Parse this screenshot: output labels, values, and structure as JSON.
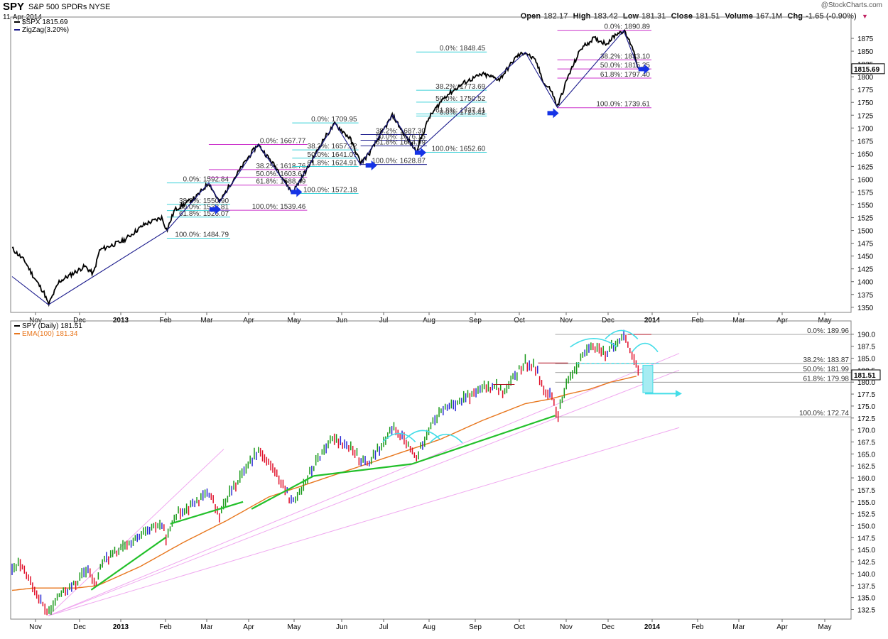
{
  "header": {
    "symbol": "SPY",
    "name": "S&P 500 SPDRs",
    "exchange": "NYSE",
    "date": "11-Apr-2014",
    "logo": "@StockCharts.com",
    "open_label": "Open",
    "open": "182.17",
    "high_label": "High",
    "high": "183.42",
    "low_label": "Low",
    "low": "181.31",
    "close_label": "Close",
    "close": "181.51",
    "volume_label": "Volume",
    "volume": "167.1M",
    "chg_label": "Chg",
    "chg": "-1.65 (-0.90%)"
  },
  "colors": {
    "price": "#000000",
    "zigzag": "#1a1a8c",
    "fib_cyan": "#3cd1d8",
    "fib_magenta": "#cc33cc",
    "arrow": "#1533e6",
    "up_bar": "#1a9a1a",
    "down_bar": "#e0102a",
    "flat_bar": "#2a2ad4",
    "ema": "#e8771e",
    "trend_green": "#22c02a",
    "fan_pink": "#f0a8f0",
    "cyan_marks": "#44dde8"
  },
  "chart_data": [
    {
      "type": "line",
      "panel": "top",
      "legend": [
        {
          "label": "$SPX 1815.69",
          "color": "#000000"
        },
        {
          "label": "ZigZag(3.20%)",
          "color": "#1a1a8c"
        }
      ],
      "last_value_label": "1815.69",
      "ylim": [
        1340,
        1900
      ],
      "yticks": [
        1350,
        1375,
        1400,
        1425,
        1450,
        1475,
        1500,
        1525,
        1550,
        1575,
        1600,
        1625,
        1650,
        1675,
        1700,
        1725,
        1750,
        1775,
        1800,
        1825,
        1850,
        1875
      ],
      "xticks": [
        "Nov",
        "Dec",
        "2013",
        "Feb",
        "Mar",
        "Apr",
        "May",
        "Jun",
        "Jul",
        "Aug",
        "Sep",
        "Oct",
        "Nov",
        "Dec",
        "2014",
        "Feb",
        "Mar",
        "Apr",
        "May"
      ],
      "series_anchors": [
        {
          "m": 0.0,
          "v": 1465
        },
        {
          "m": 0.3,
          "v": 1440
        },
        {
          "m": 0.5,
          "v": 1410
        },
        {
          "m": 0.75,
          "v": 1378
        },
        {
          "m": 0.85,
          "v": 1355
        },
        {
          "m": 1.1,
          "v": 1400
        },
        {
          "m": 1.5,
          "v": 1420
        },
        {
          "m": 1.7,
          "v": 1430
        },
        {
          "m": 1.9,
          "v": 1415
        },
        {
          "m": 2.05,
          "v": 1462
        },
        {
          "m": 2.6,
          "v": 1480
        },
        {
          "m": 3.1,
          "v": 1512
        },
        {
          "m": 3.5,
          "v": 1525
        },
        {
          "m": 3.62,
          "v": 1500
        },
        {
          "m": 3.8,
          "v": 1540
        },
        {
          "m": 4.3,
          "v": 1565
        },
        {
          "m": 4.6,
          "v": 1593
        },
        {
          "m": 4.85,
          "v": 1555
        },
        {
          "m": 5.1,
          "v": 1590
        },
        {
          "m": 5.5,
          "v": 1640
        },
        {
          "m": 5.75,
          "v": 1668
        },
        {
          "m": 6.2,
          "v": 1620
        },
        {
          "m": 6.55,
          "v": 1573
        },
        {
          "m": 6.9,
          "v": 1620
        },
        {
          "m": 7.3,
          "v": 1680
        },
        {
          "m": 7.55,
          "v": 1708
        },
        {
          "m": 7.9,
          "v": 1680
        },
        {
          "m": 8.15,
          "v": 1632
        },
        {
          "m": 8.35,
          "v": 1650
        },
        {
          "m": 8.75,
          "v": 1705
        },
        {
          "m": 8.9,
          "v": 1725
        },
        {
          "m": 9.15,
          "v": 1690
        },
        {
          "m": 9.45,
          "v": 1655
        },
        {
          "m": 9.75,
          "v": 1720
        },
        {
          "m": 10.1,
          "v": 1760
        },
        {
          "m": 10.6,
          "v": 1790
        },
        {
          "m": 11.0,
          "v": 1805
        },
        {
          "m": 11.4,
          "v": 1795
        },
        {
          "m": 11.8,
          "v": 1840
        },
        {
          "m": 12.0,
          "v": 1848
        },
        {
          "m": 12.25,
          "v": 1830
        },
        {
          "m": 12.45,
          "v": 1785
        },
        {
          "m": 12.6,
          "v": 1775
        },
        {
          "m": 12.75,
          "v": 1741
        },
        {
          "m": 13.0,
          "v": 1800
        },
        {
          "m": 13.3,
          "v": 1855
        },
        {
          "m": 13.6,
          "v": 1875
        },
        {
          "m": 13.9,
          "v": 1865
        },
        {
          "m": 14.15,
          "v": 1885
        },
        {
          "m": 14.3,
          "v": 1890
        },
        {
          "m": 14.5,
          "v": 1860
        },
        {
          "m": 14.65,
          "v": 1815
        }
      ],
      "zigzag": [
        {
          "m": 0.0,
          "v": 1410
        },
        {
          "m": 0.85,
          "v": 1355
        },
        {
          "m": 3.62,
          "v": 1500
        },
        {
          "m": 4.6,
          "v": 1593
        },
        {
          "m": 4.85,
          "v": 1555
        },
        {
          "m": 5.75,
          "v": 1668
        },
        {
          "m": 6.55,
          "v": 1573
        },
        {
          "m": 7.55,
          "v": 1710
        },
        {
          "m": 8.15,
          "v": 1628
        },
        {
          "m": 8.9,
          "v": 1725
        },
        {
          "m": 9.45,
          "v": 1653
        },
        {
          "m": 12.0,
          "v": 1848
        },
        {
          "m": 12.75,
          "v": 1740
        },
        {
          "m": 14.3,
          "v": 1890
        },
        {
          "m": 14.65,
          "v": 1815
        }
      ],
      "fib_sets": [
        {
          "color": "cyan",
          "x1": 3.62,
          "x2": 5.1,
          "labels": [
            {
              "text": "0.0%: 1592.84",
              "v": 1592.84
            },
            {
              "text": "38.2%: 1550.90",
              "v": 1550.9
            },
            {
              "text": "50.0%: 1538.81",
              "v": 1538.81
            },
            {
              "text": "61.8%: 1526.07",
              "v": 1526.07
            },
            {
              "text": "100.0%: 1484.79",
              "v": 1484.79
            }
          ]
        },
        {
          "color": "magenta",
          "x1": 4.6,
          "x2": 6.9,
          "labels": [
            {
              "text": "0.0%: 1667.77",
              "v": 1667.77
            },
            {
              "text": "38.2%: 1618.76",
              "v": 1618.76
            },
            {
              "text": "50.0%: 1603.61",
              "v": 1603.61
            },
            {
              "text": "61.8%: 1588.49",
              "v": 1588.49
            },
            {
              "text": "100.0%: 1539.46",
              "v": 1539.46
            }
          ]
        },
        {
          "color": "cyan",
          "x1": 6.55,
          "x2": 8.1,
          "labels": [
            {
              "text": "0.0%: 1709.95",
              "v": 1709.95
            },
            {
              "text": "38.2%: 1657.22",
              "v": 1657.22
            },
            {
              "text": "50.0%: 1641.07",
              "v": 1641.07
            },
            {
              "text": "61.8%: 1624.91",
              "v": 1624.91
            },
            {
              "text": "100.0%: 1572.18",
              "v": 1572.18
            }
          ]
        },
        {
          "color": "blue",
          "x1": 8.15,
          "x2": 9.7,
          "labels": [
            {
              "text": "38.2%: 1687.30",
              "v": 1687.3
            },
            {
              "text": "50.0%: 1676.15",
              "v": 1676.15
            },
            {
              "text": "61.8%: 1664.99",
              "v": 1664.99
            },
            {
              "text": "100.0%: 1628.87",
              "v": 1628.87
            }
          ]
        },
        {
          "color": "cyan",
          "x1": 9.45,
          "x2": 11.1,
          "labels": [
            {
              "text": "0.0%: 1848.45",
              "v": 1848.45
            },
            {
              "text": "38.2%: 1773.69",
              "v": 1773.69
            },
            {
              "text": "50.0%: 1750.52",
              "v": 1750.52
            },
            {
              "text": "61.8%: 1727.41",
              "v": 1727.41
            },
            {
              "text": "0.0%: 1723.42",
              "v": 1723.42
            },
            {
              "text": "100.0%: 1652.60",
              "v": 1652.6
            }
          ]
        },
        {
          "color": "magenta",
          "x1": 12.75,
          "x2": 14.95,
          "labels": [
            {
              "text": "0.0%: 1890.89",
              "v": 1890.89
            },
            {
              "text": "38.2%: 1833.10",
              "v": 1833.1
            },
            {
              "text": "50.0%: 1815.25",
              "v": 1815.25
            },
            {
              "text": "61.8%: 1797.40",
              "v": 1797.4
            },
            {
              "text": "100.0%: 1739.61",
              "v": 1739.61
            }
          ]
        }
      ],
      "arrows": [
        {
          "m": 4.75,
          "v": 1541
        },
        {
          "m": 6.65,
          "v": 1575
        },
        {
          "m": 8.4,
          "v": 1627
        },
        {
          "m": 9.55,
          "v": 1652
        },
        {
          "m": 12.65,
          "v": 1729
        },
        {
          "m": 14.78,
          "v": 1815
        }
      ]
    },
    {
      "type": "bar",
      "panel": "bottom",
      "legend": [
        {
          "label": "SPY (Daily) 181.51",
          "color": "#000000"
        },
        {
          "label": "EMA(100) 181.34",
          "color": "#e8771e"
        }
      ],
      "last_value_label": "181.51",
      "ylim": [
        130.5,
        191
      ],
      "yticks": [
        132.5,
        135.0,
        137.5,
        140.0,
        142.5,
        145.0,
        147.5,
        150.0,
        152.5,
        155.0,
        157.5,
        160.0,
        162.5,
        165.0,
        167.5,
        170.0,
        172.5,
        175.0,
        177.5,
        180.0,
        182.5,
        185.0,
        187.5,
        190.0
      ],
      "xticks": [
        "Nov",
        "Dec",
        "2013",
        "Feb",
        "Mar",
        "Apr",
        "May",
        "Jun",
        "Jul",
        "Aug",
        "Sep",
        "Oct",
        "Nov",
        "Dec",
        "2014",
        "Feb",
        "Mar",
        "Apr",
        "May"
      ],
      "fib_labels": [
        {
          "text": "0.0%: 189.96",
          "v": 189.96
        },
        {
          "text": "38.2%: 183.87",
          "v": 183.87
        },
        {
          "text": "50.0%: 181.99",
          "v": 181.99
        },
        {
          "text": "61.8%: 179.98",
          "v": 179.98
        },
        {
          "text": "100.0%: 172.74",
          "v": 172.74
        }
      ],
      "series_anchors": [
        {
          "m": 0.0,
          "v": 140.5
        },
        {
          "m": 0.15,
          "v": 142
        },
        {
          "m": 0.4,
          "v": 139
        },
        {
          "m": 0.55,
          "v": 136
        },
        {
          "m": 0.75,
          "v": 133
        },
        {
          "m": 0.85,
          "v": 131.5
        },
        {
          "m": 1.1,
          "v": 135.5
        },
        {
          "m": 1.5,
          "v": 138
        },
        {
          "m": 1.75,
          "v": 141
        },
        {
          "m": 1.95,
          "v": 137.5
        },
        {
          "m": 2.1,
          "v": 142.5
        },
        {
          "m": 2.7,
          "v": 146
        },
        {
          "m": 3.2,
          "v": 149
        },
        {
          "m": 3.5,
          "v": 150.5
        },
        {
          "m": 3.62,
          "v": 147
        },
        {
          "m": 3.8,
          "v": 152
        },
        {
          "m": 4.3,
          "v": 155
        },
        {
          "m": 4.6,
          "v": 157
        },
        {
          "m": 4.85,
          "v": 152
        },
        {
          "m": 5.1,
          "v": 157
        },
        {
          "m": 5.5,
          "v": 162.5
        },
        {
          "m": 5.75,
          "v": 166
        },
        {
          "m": 6.1,
          "v": 162
        },
        {
          "m": 6.3,
          "v": 159
        },
        {
          "m": 6.55,
          "v": 154.5
        },
        {
          "m": 6.9,
          "v": 160
        },
        {
          "m": 7.3,
          "v": 166
        },
        {
          "m": 7.55,
          "v": 168.5
        },
        {
          "m": 7.9,
          "v": 166
        },
        {
          "m": 8.15,
          "v": 164
        },
        {
          "m": 8.35,
          "v": 163
        },
        {
          "m": 8.75,
          "v": 168
        },
        {
          "m": 8.9,
          "v": 170.5
        },
        {
          "m": 9.15,
          "v": 168
        },
        {
          "m": 9.45,
          "v": 164
        },
        {
          "m": 9.75,
          "v": 170.5
        },
        {
          "m": 10.1,
          "v": 174.5
        },
        {
          "m": 10.6,
          "v": 176.5
        },
        {
          "m": 11.0,
          "v": 178.5
        },
        {
          "m": 11.3,
          "v": 179.5
        },
        {
          "m": 11.5,
          "v": 177.5
        },
        {
          "m": 11.8,
          "v": 182
        },
        {
          "m": 12.0,
          "v": 184
        },
        {
          "m": 12.25,
          "v": 183
        },
        {
          "m": 12.45,
          "v": 178
        },
        {
          "m": 12.6,
          "v": 177
        },
        {
          "m": 12.75,
          "v": 173
        },
        {
          "m": 13.0,
          "v": 180
        },
        {
          "m": 13.3,
          "v": 185
        },
        {
          "m": 13.6,
          "v": 187.5
        },
        {
          "m": 13.9,
          "v": 186
        },
        {
          "m": 14.15,
          "v": 188
        },
        {
          "m": 14.3,
          "v": 189.9
        },
        {
          "m": 14.5,
          "v": 186
        },
        {
          "m": 14.65,
          "v": 181.5
        }
      ],
      "ema_anchors": [
        {
          "m": 0.0,
          "v": 136.5
        },
        {
          "m": 0.5,
          "v": 137
        },
        {
          "m": 1.0,
          "v": 137
        },
        {
          "m": 1.5,
          "v": 137
        },
        {
          "m": 2.0,
          "v": 137.5
        },
        {
          "m": 3.0,
          "v": 141.5
        },
        {
          "m": 4.0,
          "v": 146.5
        },
        {
          "m": 5.0,
          "v": 151
        },
        {
          "m": 6.0,
          "v": 156
        },
        {
          "m": 7.0,
          "v": 159
        },
        {
          "m": 8.0,
          "v": 162
        },
        {
          "m": 9.0,
          "v": 165
        },
        {
          "m": 10.0,
          "v": 168
        },
        {
          "m": 11.0,
          "v": 172
        },
        {
          "m": 12.0,
          "v": 175.5
        },
        {
          "m": 12.6,
          "v": 176.5
        },
        {
          "m": 13.0,
          "v": 177.5
        },
        {
          "m": 13.5,
          "v": 178.5
        },
        {
          "m": 14.0,
          "v": 180
        },
        {
          "m": 14.65,
          "v": 181.34
        }
      ],
      "green_trendlines": [
        [
          {
            "m": 1.85,
            "v": 136.6
          },
          {
            "m": 3.6,
            "v": 147.6
          }
        ],
        [
          {
            "m": 3.7,
            "v": 150.4
          },
          {
            "m": 5.4,
            "v": 155.0
          }
        ],
        [
          {
            "m": 5.6,
            "v": 153.5
          },
          {
            "m": 7.05,
            "v": 160.4
          }
        ],
        [
          {
            "m": 7.05,
            "v": 160.4
          },
          {
            "m": 9.35,
            "v": 162.9
          }
        ],
        [
          {
            "m": 9.35,
            "v": 162.9
          },
          {
            "m": 12.7,
            "v": 173.0
          }
        ]
      ],
      "fan_lines": [
        [
          {
            "m": 0.85,
            "v": 131.2
          },
          {
            "m": 4.95,
            "v": 166
          }
        ],
        [
          {
            "m": 0.85,
            "v": 131.2
          },
          {
            "m": 15.6,
            "v": 186
          }
        ],
        [
          {
            "m": 0.85,
            "v": 131.2
          },
          {
            "m": 15.6,
            "v": 182.5
          }
        ],
        [
          {
            "m": 0.85,
            "v": 131.2
          },
          {
            "m": 15.6,
            "v": 170.5
          }
        ]
      ]
    }
  ]
}
